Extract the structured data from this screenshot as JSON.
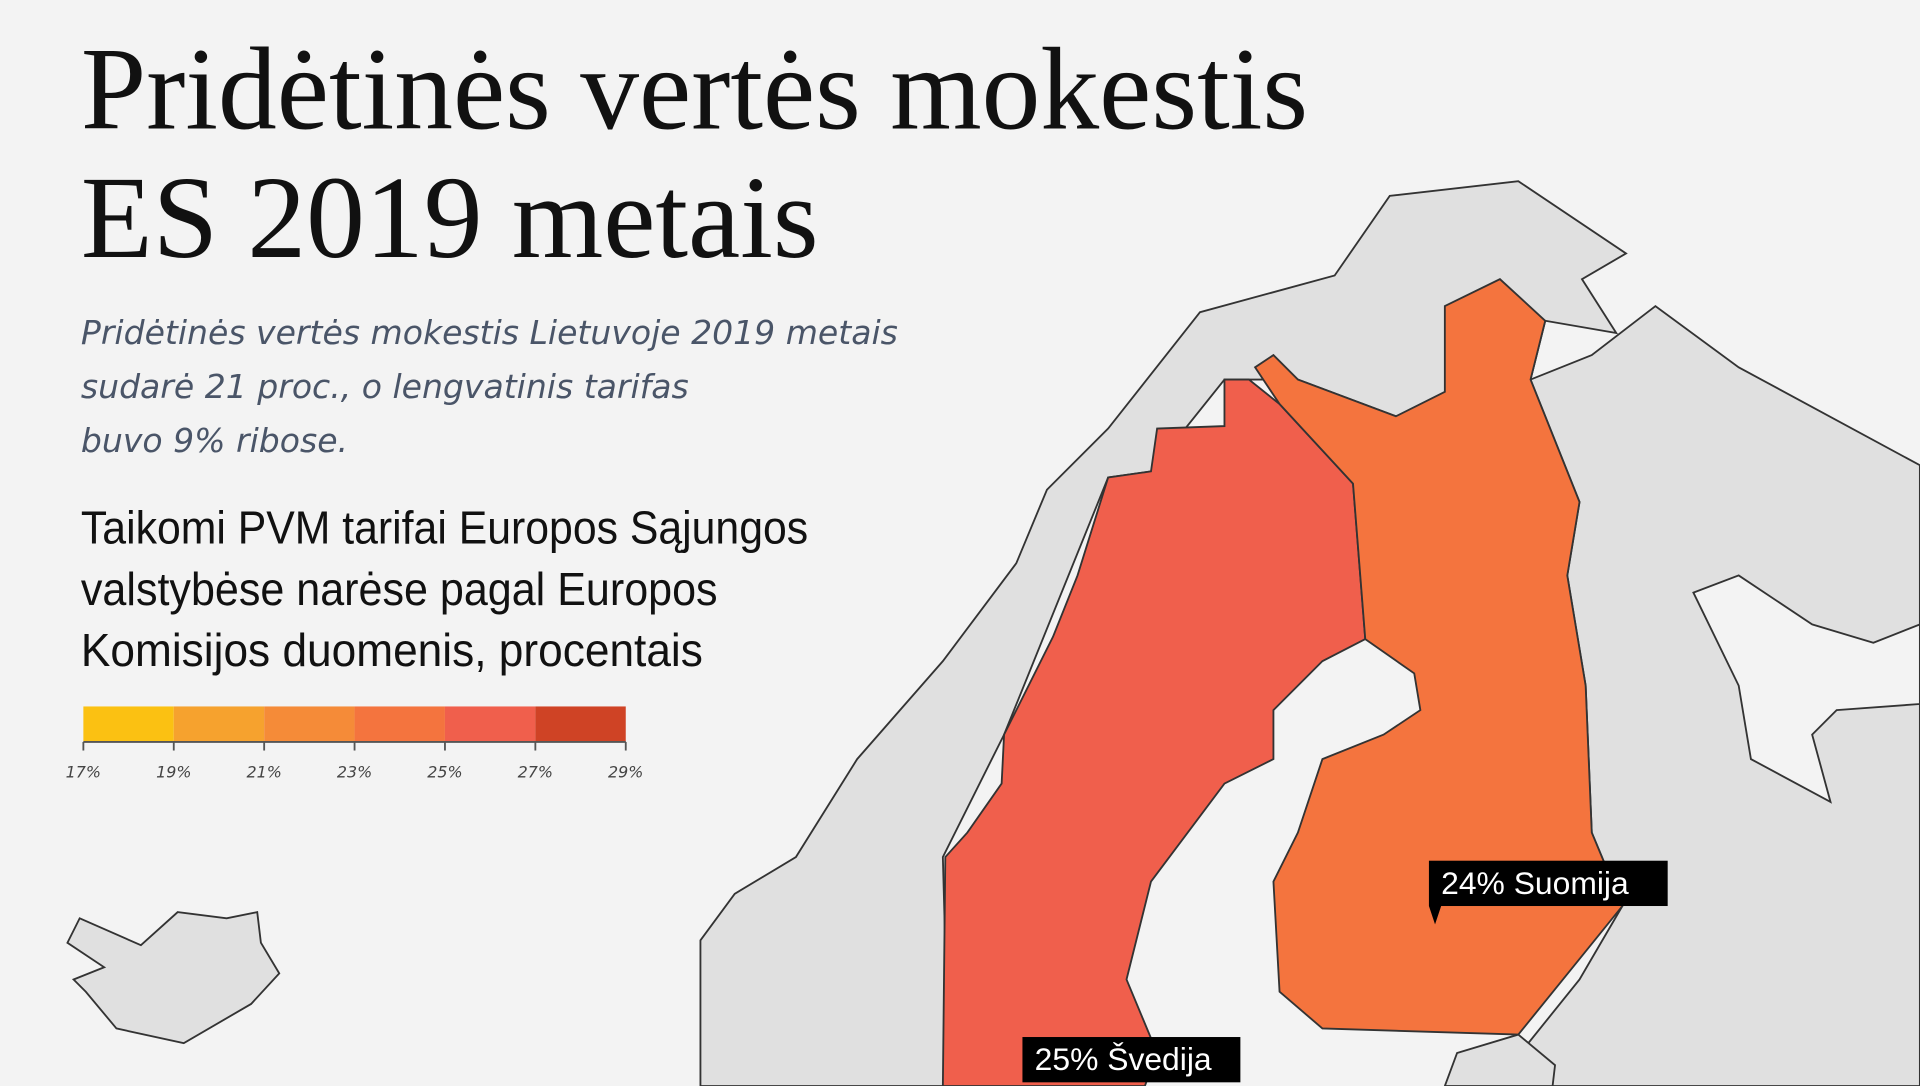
{
  "header": {
    "title": [
      "Pridėtinės vertės mokestis",
      "ES 2019 metais"
    ],
    "subtitle": [
      "Pridėtinės vertės mokestis Lietuvoje 2019 metais",
      "sudarė 21 proc., o lengvatinis tarifas",
      "buvo 9% ribose."
    ]
  },
  "legend": {
    "title": [
      "Taikomi PVM tarifai Europos Sąjungos",
      "valstybėse narėse pagal Europos",
      "Komisijos duomenis, procentais"
    ],
    "ticks": [
      {
        "value": 17,
        "label": "17%"
      },
      {
        "value": 19,
        "label": "19%"
      },
      {
        "value": 21,
        "label": "21%"
      },
      {
        "value": 23,
        "label": "23%"
      },
      {
        "value": 25,
        "label": "25%"
      },
      {
        "value": 27,
        "label": "27%"
      },
      {
        "value": 29,
        "label": "29%"
      }
    ],
    "colors": [
      "#fbc112",
      "#f6a22e",
      "#f58b38",
      "#f4743e",
      "#f05f4c",
      "#cf4325"
    ]
  },
  "map": {
    "regions": [
      {
        "value": 24,
        "label": "24% Suomija"
      },
      {
        "value": 25,
        "label": "25% Švedija"
      }
    ]
  }
}
